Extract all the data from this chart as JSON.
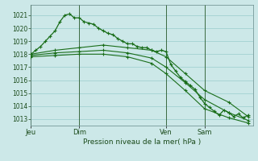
{
  "title": "Pression niveau de la mer( hPa )",
  "background_color": "#cce8e8",
  "grid_color": "#99cccc",
  "line_color": "#1a6e1a",
  "ylim": [
    1012.5,
    1021.8
  ],
  "yticks": [
    1013,
    1014,
    1015,
    1016,
    1017,
    1018,
    1019,
    1020,
    1021
  ],
  "day_labels": [
    "Jeu",
    "Dim",
    "Ven",
    "Sam"
  ],
  "day_positions": [
    0,
    10,
    28,
    36
  ],
  "xlim": [
    0,
    46
  ],
  "series1_x": [
    0,
    1,
    2,
    3,
    4,
    5,
    6,
    7,
    8,
    9,
    10,
    11,
    12,
    13,
    14,
    15,
    16,
    17,
    18,
    19,
    20,
    21,
    22,
    23,
    24,
    25,
    26,
    27,
    28,
    29,
    30,
    31,
    32,
    33,
    34,
    35,
    36,
    37,
    38,
    39,
    40,
    41,
    42,
    43,
    44,
    45
  ],
  "series1_y": [
    1018.0,
    1018.3,
    1018.6,
    1019.0,
    1019.4,
    1019.8,
    1020.5,
    1021.0,
    1021.1,
    1020.8,
    1020.8,
    1020.5,
    1020.4,
    1020.3,
    1020.0,
    1019.8,
    1019.6,
    1019.5,
    1019.2,
    1019.0,
    1018.8,
    1018.8,
    1018.6,
    1018.5,
    1018.5,
    1018.3,
    1018.2,
    1018.3,
    1018.2,
    1017.2,
    1016.7,
    1016.2,
    1015.9,
    1015.6,
    1015.3,
    1014.7,
    1014.2,
    1013.9,
    1013.6,
    1013.3,
    1013.7,
    1013.5,
    1013.2,
    1013.4,
    1013.1,
    1013.3
  ],
  "series2_x": [
    0,
    5,
    10,
    15,
    20,
    25,
    28,
    32,
    36,
    41,
    45
  ],
  "series2_y": [
    1018.0,
    1018.3,
    1018.5,
    1018.7,
    1018.5,
    1018.3,
    1017.8,
    1016.5,
    1015.2,
    1014.3,
    1013.2
  ],
  "series3_x": [
    0,
    5,
    10,
    15,
    20,
    25,
    28,
    32,
    36,
    41,
    45
  ],
  "series3_y": [
    1017.9,
    1018.1,
    1018.2,
    1018.3,
    1018.1,
    1017.7,
    1017.0,
    1015.8,
    1014.5,
    1013.5,
    1012.9
  ],
  "series4_x": [
    0,
    5,
    10,
    15,
    20,
    25,
    28,
    32,
    36,
    41,
    45
  ],
  "series4_y": [
    1017.8,
    1017.9,
    1018.0,
    1018.0,
    1017.8,
    1017.3,
    1016.5,
    1015.2,
    1013.8,
    1013.1,
    1012.7
  ]
}
